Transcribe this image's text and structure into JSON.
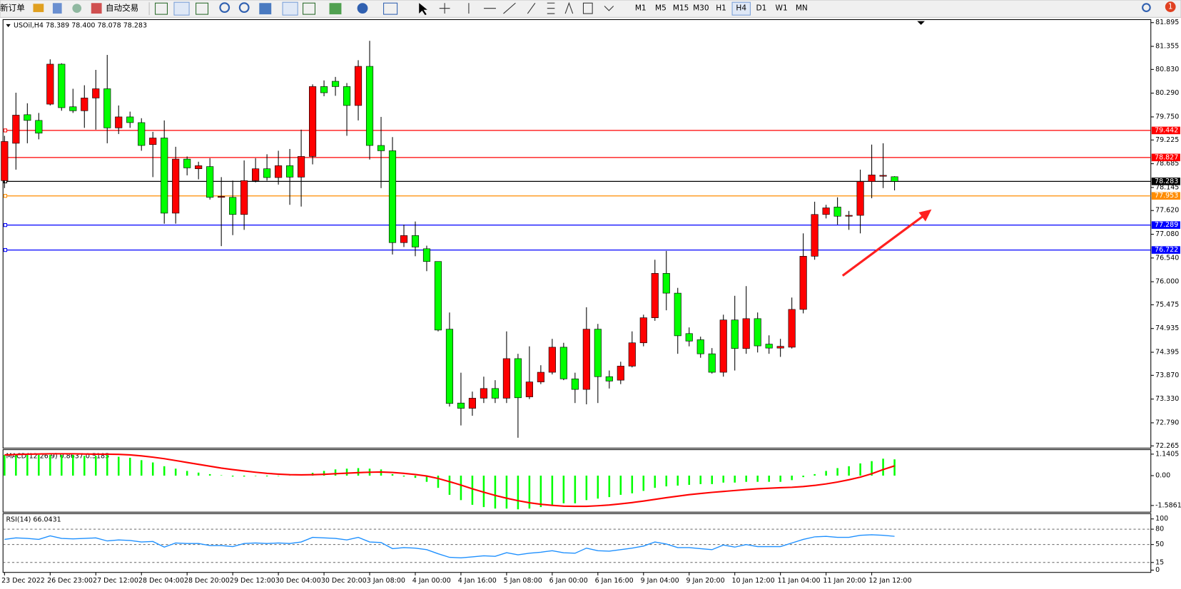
{
  "toolbar": {
    "new_order": "新订单",
    "auto_trading": "自动交易",
    "timeframes": [
      "M1",
      "M5",
      "M15",
      "M30",
      "H1",
      "H4",
      "D1",
      "W1",
      "MN"
    ],
    "notifications": "1"
  },
  "chart_data": [
    {
      "type": "candlestick",
      "title": "USOil,H4  78.389 78.400 78.078 78.283",
      "categories": [
        "23 Dec 2022",
        null,
        null,
        null,
        "26 Dec 23:00",
        null,
        null,
        null,
        "27 Dec 12:00",
        null,
        null,
        null,
        "28 Dec 04:00",
        null,
        null,
        null,
        "28 Dec 20:00",
        null,
        null,
        null,
        "29 Dec 12:00",
        null,
        null,
        null,
        "30 Dec 04:00",
        null,
        null,
        null,
        "30 Dec 20:00",
        null,
        null,
        null,
        "3 Jan 08:00",
        null,
        null,
        null,
        "4 Jan 00:00",
        null,
        null,
        null,
        "4 Jan 16:00",
        null,
        null,
        null,
        "5 Jan 08:00",
        null,
        null,
        null,
        "6 Jan 00:00",
        null,
        null,
        null,
        "6 Jan 16:00",
        null,
        null,
        null,
        "9 Jan 04:00",
        null,
        null,
        null,
        "9 Jan 20:00",
        null,
        null,
        null,
        "10 Jan 12:00",
        null,
        null,
        null,
        "11 Jan 04:00",
        null,
        null,
        null,
        "11 Jan 20:00",
        null,
        null,
        null,
        "12 Jan 12:00",
        null,
        null
      ],
      "open": [
        78.3,
        79.15,
        79.8,
        79.67,
        80.04,
        80.95,
        79.98,
        79.89,
        80.18,
        80.39,
        79.5,
        79.75,
        79.62,
        79.12,
        79.27,
        77.56,
        78.79,
        78.57,
        78.62,
        77.92,
        77.92,
        77.53,
        78.3,
        78.57,
        78.37,
        78.64,
        78.38,
        78.85,
        80.44,
        80.56,
        80.44,
        80.01,
        80.9,
        79.1,
        78.98,
        76.89,
        77.05,
        76.75,
        76.46,
        74.92,
        73.24,
        73.12,
        73.35,
        73.57,
        73.35,
        74.25,
        73.38,
        73.72,
        73.94,
        74.51,
        73.79,
        73.55,
        74.92,
        73.84,
        73.76,
        74.08,
        74.61,
        75.18,
        76.19,
        75.74,
        74.82,
        74.68,
        74.36,
        73.94,
        75.13,
        74.48,
        75.16,
        74.58,
        74.49,
        74.51,
        75.37,
        76.58,
        77.53,
        77.7,
        77.49,
        77.51,
        78.28,
        78.4,
        78.389
      ],
      "high": [
        79.32,
        80.3,
        80.06,
        79.84,
        81.06,
        80.97,
        80.39,
        80.47,
        80.82,
        81.16,
        80.01,
        79.87,
        79.72,
        79.41,
        79.67,
        79.07,
        78.85,
        78.73,
        78.81,
        78.38,
        78.3,
        78.76,
        78.81,
        78.9,
        78.98,
        79.02,
        79.46,
        80.49,
        80.58,
        80.66,
        80.52,
        81.04,
        81.48,
        79.75,
        79.29,
        77.3,
        77.37,
        76.82,
        76.46,
        75.3,
        73.93,
        73.5,
        73.84,
        73.76,
        74.87,
        74.36,
        74.53,
        74.1,
        74.7,
        74.61,
        73.93,
        75.42,
        75.04,
        73.98,
        74.18,
        74.87,
        75.25,
        76.5,
        76.7,
        75.86,
        74.96,
        74.75,
        74.49,
        75.25,
        75.68,
        75.9,
        75.3,
        74.78,
        74.7,
        75.64,
        77.1,
        77.82,
        77.75,
        77.92,
        77.61,
        78.55,
        79.12,
        79.15,
        78.4
      ],
      "low": [
        78.13,
        78.55,
        79.15,
        79.24,
        80.01,
        79.89,
        79.84,
        79.5,
        79.46,
        79.15,
        79.36,
        79.5,
        78.98,
        78.38,
        77.32,
        77.32,
        78.42,
        78.33,
        77.87,
        76.81,
        77.06,
        77.18,
        78.26,
        78.3,
        78.21,
        77.75,
        77.71,
        78.67,
        80.22,
        80.23,
        79.32,
        79.67,
        78.78,
        78.13,
        76.62,
        76.79,
        76.58,
        76.24,
        74.87,
        73.16,
        72.73,
        72.95,
        73.24,
        73.24,
        73.24,
        72.45,
        73.33,
        73.67,
        73.89,
        73.76,
        73.24,
        73.21,
        73.24,
        73.57,
        73.67,
        74.05,
        74.53,
        75.11,
        75.35,
        74.36,
        74.53,
        74.27,
        73.91,
        73.84,
        73.98,
        74.36,
        74.39,
        74.36,
        74.29,
        74.48,
        75.28,
        76.5,
        77.44,
        77.3,
        77.18,
        77.1,
        77.9,
        78.13,
        78.078
      ],
      "close": [
        79.19,
        79.79,
        79.67,
        79.38,
        80.95,
        79.96,
        79.89,
        80.18,
        80.39,
        79.5,
        79.75,
        79.62,
        79.1,
        79.27,
        77.56,
        78.79,
        78.59,
        78.64,
        77.92,
        77.94,
        77.53,
        78.3,
        78.57,
        78.37,
        78.64,
        78.38,
        78.85,
        80.44,
        80.3,
        80.44,
        80.01,
        80.9,
        79.1,
        78.98,
        76.89,
        77.05,
        76.79,
        76.46,
        74.9,
        73.23,
        73.12,
        73.35,
        73.57,
        73.35,
        74.25,
        73.36,
        73.72,
        73.94,
        74.51,
        73.79,
        73.55,
        74.92,
        73.84,
        73.74,
        74.08,
        74.61,
        75.18,
        76.19,
        75.74,
        74.77,
        74.65,
        74.36,
        73.94,
        75.13,
        74.48,
        75.16,
        74.54,
        74.49,
        74.53,
        75.37,
        76.58,
        77.53,
        77.68,
        77.49,
        77.51,
        78.28,
        78.43,
        78.42,
        78.283
      ],
      "up_color": "#ff0000",
      "down_color": "#00ff00",
      "ylim": [
        72.265,
        81.895
      ],
      "yticks": [
        81.895,
        81.355,
        {
          "value": 80.83,
          "label": "80.830"
        },
        {
          "value": 80.29,
          "label": "80.290"
        },
        {
          "value": 79.75,
          "label": "79.750"
        },
        79.225,
        78.685,
        78.145,
        {
          "value": 77.62,
          "label": "77.620"
        },
        {
          "value": 77.08,
          "label": "77.080"
        },
        {
          "value": 76.54,
          "label": "76.540"
        },
        {
          "value": 76,
          "label": "76.000"
        },
        75.475,
        74.935,
        74.395,
        {
          "value": 73.87,
          "label": "73.870"
        },
        {
          "value": 73.33,
          "label": "73.330"
        },
        {
          "value": 72.79,
          "label": "72.790"
        },
        72.265
      ],
      "hlines": [
        {
          "value": 79.442,
          "color": "#ff0000"
        },
        {
          "value": 78.827,
          "color": "#ff0000"
        },
        {
          "value": 78.283,
          "color": "#000000"
        },
        {
          "value": 77.953,
          "color": "#ff8c00"
        },
        {
          "value": 77.289,
          "color": "#0000ff"
        },
        {
          "value": 76.722,
          "color": "#0000ff"
        }
      ]
    },
    {
      "type": "macd",
      "title": "MACD(12,26,9) 0.8637 0.5185",
      "histogram": [
        1.1,
        1.1,
        1.1,
        1.1,
        1.1,
        1.1,
        1.1,
        1.05,
        1.05,
        1.1,
        1.0,
        0.95,
        0.82,
        0.7,
        0.5,
        0.37,
        0.25,
        0.16,
        0.08,
        0.02,
        -0.05,
        -0.05,
        -0.02,
        -0.04,
        -0.02,
        0.01,
        0.03,
        0.15,
        0.25,
        0.33,
        0.37,
        0.4,
        0.37,
        0.33,
        0.08,
        -0.05,
        -0.12,
        -0.33,
        -0.65,
        -1.02,
        -1.3,
        -1.55,
        -1.67,
        -1.75,
        -1.75,
        -1.79,
        -1.75,
        -1.67,
        -1.55,
        -1.47,
        -1.47,
        -1.3,
        -1.22,
        -1.14,
        -1.02,
        -0.94,
        -0.81,
        -0.65,
        -0.57,
        -0.53,
        -0.49,
        -0.45,
        -0.45,
        -0.37,
        -0.37,
        -0.33,
        -0.33,
        -0.33,
        -0.33,
        -0.24,
        -0.08,
        0.08,
        0.25,
        0.4,
        0.5,
        0.65,
        0.77,
        0.9,
        0.8637
      ],
      "signal": [
        1.1,
        1.12,
        1.14,
        1.15,
        1.16,
        1.16,
        1.16,
        1.15,
        1.14,
        1.14,
        1.13,
        1.1,
        1.05,
        0.98,
        0.9,
        0.8,
        0.7,
        0.6,
        0.5,
        0.4,
        0.32,
        0.25,
        0.18,
        0.12,
        0.08,
        0.05,
        0.04,
        0.05,
        0.07,
        0.1,
        0.13,
        0.16,
        0.18,
        0.19,
        0.17,
        0.12,
        0.06,
        -0.02,
        -0.15,
        -0.32,
        -0.5,
        -0.7,
        -0.88,
        -1.05,
        -1.2,
        -1.33,
        -1.44,
        -1.52,
        -1.58,
        -1.62,
        -1.63,
        -1.63,
        -1.6,
        -1.56,
        -1.5,
        -1.43,
        -1.35,
        -1.26,
        -1.17,
        -1.09,
        -1.01,
        -0.95,
        -0.89,
        -0.84,
        -0.79,
        -0.74,
        -0.7,
        -0.67,
        -0.64,
        -0.62,
        -0.58,
        -0.52,
        -0.44,
        -0.34,
        -0.22,
        -0.08,
        0.1,
        0.32,
        0.5185
      ],
      "histogram_color": "#00ff00",
      "signal_color": "#ff0000",
      "ylim": [
        -1.86,
        1.26
      ],
      "yticks": [
        1.1405,
        {
          "value": 0,
          "label": "0.00"
        },
        -1.5861
      ]
    },
    {
      "type": "line",
      "title": "RSI(14) 66.0431",
      "values": [
        60,
        63,
        62,
        60,
        67,
        62,
        61,
        62,
        63,
        57,
        59,
        58,
        55,
        56,
        45,
        53,
        52,
        52,
        48,
        48,
        46,
        52,
        53,
        52,
        53,
        52,
        55,
        64,
        63,
        62,
        59,
        64,
        55,
        54,
        42,
        44,
        43,
        40,
        32,
        25,
        24,
        26,
        28,
        27,
        34,
        30,
        33,
        35,
        38,
        34,
        33,
        43,
        38,
        37,
        40,
        43,
        47,
        55,
        51,
        44,
        44,
        42,
        40,
        49,
        45,
        50,
        46,
        46,
        46,
        53,
        60,
        65,
        66,
        64,
        64,
        68,
        69,
        68,
        66.0431
      ],
      "color": "#1e90ff",
      "ylim": [
        0,
        100
      ],
      "yticks": [
        100,
        80,
        50,
        15,
        0
      ],
      "levels": [
        80,
        50,
        15
      ]
    }
  ]
}
